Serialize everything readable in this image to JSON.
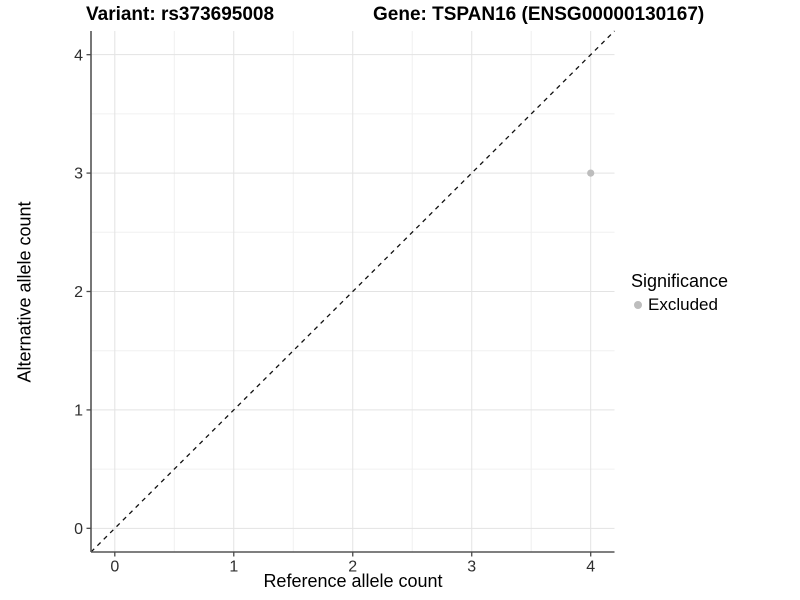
{
  "chart_data": {
    "type": "scatter",
    "title": "Variant: rs373695008        Gene: TSPAN16 (ENSG00000130167)",
    "title_left": "Variant: rs373695008",
    "title_right": "Gene: TSPAN16 (ENSG00000130167)",
    "xlabel": "Reference allele count",
    "ylabel": "Alternative allele count",
    "xlim": [
      0,
      4
    ],
    "ylim": [
      0,
      4
    ],
    "x_ticks": [
      0,
      1,
      2,
      3,
      4
    ],
    "y_ticks": [
      0,
      1,
      2,
      3,
      4
    ],
    "grid": "major-and-minor",
    "points": [
      {
        "x": 4,
        "y": 3,
        "significance": "Excluded"
      }
    ],
    "point_color": "#bdbdbd",
    "reference_line": {
      "type": "identity",
      "style": "dashed",
      "color": "#111111"
    },
    "legend": {
      "position": "right",
      "title": "Significance",
      "entries": [
        {
          "label": "Excluded",
          "color": "#bdbdbd"
        }
      ]
    }
  }
}
